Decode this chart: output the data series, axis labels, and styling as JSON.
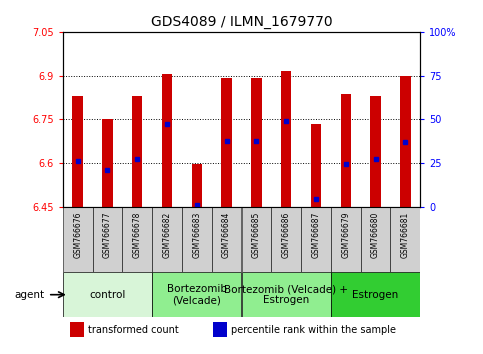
{
  "title": "GDS4089 / ILMN_1679770",
  "samples": [
    "GSM766676",
    "GSM766677",
    "GSM766678",
    "GSM766682",
    "GSM766683",
    "GSM766684",
    "GSM766685",
    "GSM766686",
    "GSM766687",
    "GSM766679",
    "GSM766680",
    "GSM766681"
  ],
  "bar_tops": [
    6.83,
    6.75,
    6.83,
    6.905,
    6.595,
    6.89,
    6.89,
    6.915,
    6.735,
    6.835,
    6.83,
    6.9
  ],
  "blue_dots": [
    6.608,
    6.575,
    6.615,
    6.735,
    6.455,
    6.675,
    6.675,
    6.745,
    6.475,
    6.595,
    6.615,
    6.672
  ],
  "ymin": 6.45,
  "ymax": 7.05,
  "yticks_left": [
    6.45,
    6.6,
    6.75,
    6.9,
    7.05
  ],
  "yticks_right": [
    0,
    25,
    50,
    75,
    100
  ],
  "yticks_right_labels": [
    "0",
    "25",
    "50",
    "75",
    "100%"
  ],
  "dotted_lines": [
    6.6,
    6.75,
    6.9
  ],
  "groups": [
    {
      "label": "control",
      "start": 0,
      "end": 3,
      "color": "#d8f5d8"
    },
    {
      "label": "Bortezomib\n(Velcade)",
      "start": 3,
      "end": 6,
      "color": "#90ee90"
    },
    {
      "label": "Bortezomib (Velcade) +\nEstrogen",
      "start": 6,
      "end": 9,
      "color": "#90ee90"
    },
    {
      "label": "Estrogen",
      "start": 9,
      "end": 12,
      "color": "#32cd32"
    }
  ],
  "bar_color": "#cc0000",
  "dot_color": "#0000cc",
  "bar_width": 0.35,
  "agent_label": "agent",
  "legend_items": [
    {
      "color": "#cc0000",
      "label": "transformed count"
    },
    {
      "color": "#0000cc",
      "label": "percentile rank within the sample"
    }
  ],
  "title_fontsize": 10,
  "tick_fontsize": 7,
  "sample_fontsize": 5.5,
  "group_fontsize": 7.5,
  "legend_fontsize": 7
}
